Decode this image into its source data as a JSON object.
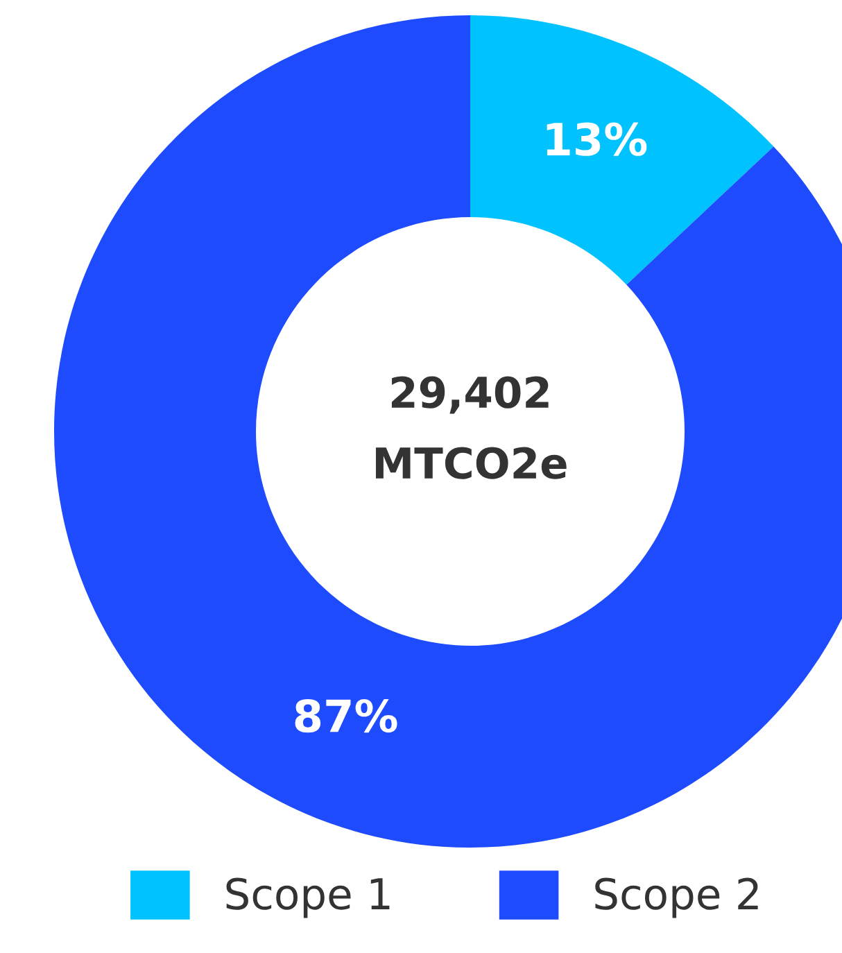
{
  "chart_data": {
    "type": "donut",
    "categories": [
      "Scope 1",
      "Scope 2"
    ],
    "values": [
      13,
      87
    ],
    "colors": [
      "#00c2ff",
      "#1f4bff"
    ],
    "value_labels": [
      "13%",
      "87%"
    ],
    "annotations": [
      "29,402",
      "MTCO2e"
    ],
    "legend": "bottom"
  }
}
